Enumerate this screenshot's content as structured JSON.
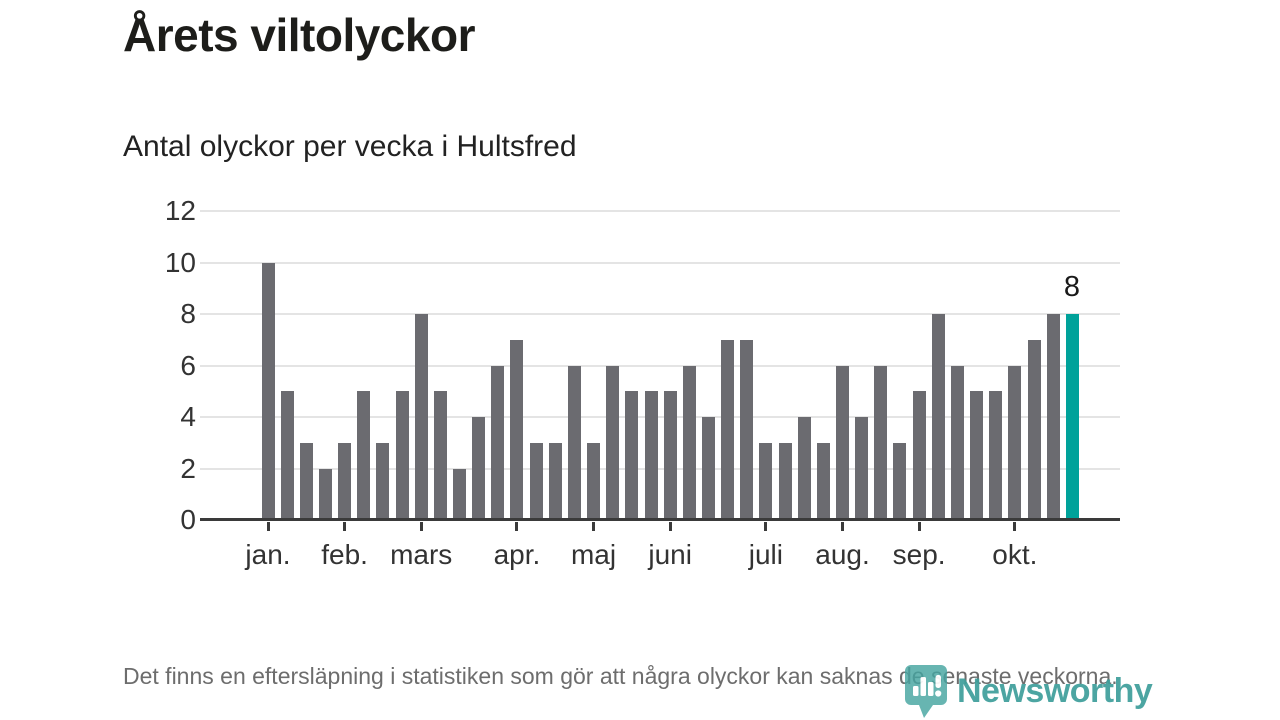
{
  "header": {
    "title": "Årets viltolyckor",
    "subtitle": "Antal olyckor per vecka i Hultsfred"
  },
  "chart_data": {
    "type": "bar",
    "title": "Årets viltolyckor",
    "subtitle": "Antal olyckor per vecka i Hultsfred",
    "values": [
      10,
      5,
      3,
      2,
      3,
      5,
      3,
      5,
      8,
      5,
      2,
      4,
      6,
      7,
      3,
      3,
      6,
      3,
      6,
      5,
      5,
      5,
      6,
      4,
      7,
      7,
      3,
      3,
      4,
      3,
      6,
      4,
      6,
      3,
      5,
      8,
      6,
      5,
      5,
      6,
      7,
      8,
      8
    ],
    "highlight_index": 42,
    "highlight_value": 8,
    "highlight_label": "8",
    "y_ticks": [
      0,
      2,
      4,
      6,
      8,
      10,
      12
    ],
    "ylim": [
      0,
      12
    ],
    "grid": true,
    "month_ticks": [
      {
        "label": "jan.",
        "bar_index": 0
      },
      {
        "label": "feb.",
        "bar_index": 4
      },
      {
        "label": "mars",
        "bar_index": 8
      },
      {
        "label": "apr.",
        "bar_index": 13
      },
      {
        "label": "maj",
        "bar_index": 17
      },
      {
        "label": "juni",
        "bar_index": 21
      },
      {
        "label": "juli",
        "bar_index": 26
      },
      {
        "label": "aug.",
        "bar_index": 30
      },
      {
        "label": "sep.",
        "bar_index": 34
      },
      {
        "label": "okt.",
        "bar_index": 39
      }
    ],
    "colors": {
      "bar": "#6b6b70",
      "highlight": "#00a29a",
      "grid": "#e4e4e4",
      "axis": "#3a3a3a"
    }
  },
  "footer": {
    "note": "Det finns en eftersläpning i statistiken som gör att några olyckor kan saknas de senaste veckorna.",
    "brand": "Newsworthy",
    "brand_color": "#3f9f9b"
  }
}
